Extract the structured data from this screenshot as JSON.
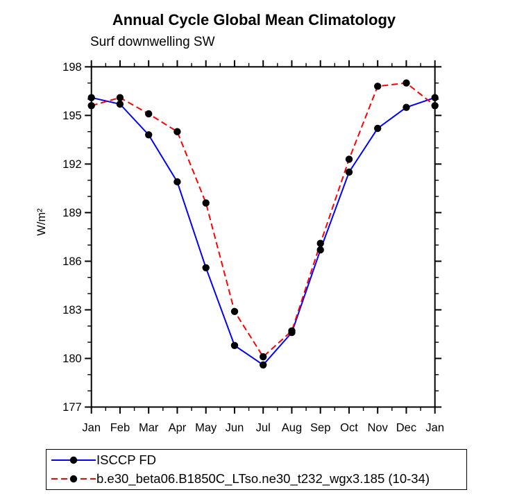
{
  "chart_data": {
    "type": "line",
    "title": "Annual Cycle Global Mean Climatology",
    "subtitle": "Surf downwelling SW",
    "ylabel": "W/m²",
    "xlabel": "",
    "categories": [
      "Jan",
      "Feb",
      "Mar",
      "Apr",
      "May",
      "Jun",
      "Jul",
      "Aug",
      "Sep",
      "Oct",
      "Nov",
      "Dec",
      "Jan"
    ],
    "ylim": [
      177,
      198
    ],
    "yticks_major": [
      177,
      180,
      183,
      186,
      189,
      192,
      195,
      198
    ],
    "ytick_minor_interval": 1,
    "xtick_minor_step": 0.5,
    "grid": false,
    "legend_position": "bottom-left-boxed",
    "marker": "filled-circle",
    "marker_color": "#000000",
    "axis_color": "#000000",
    "series": [
      {
        "name": "ISCCP FD",
        "color": "#0000ff",
        "line_style": "solid",
        "values": [
          196.1,
          195.7,
          193.8,
          190.9,
          185.6,
          180.8,
          179.6,
          181.6,
          186.7,
          191.5,
          194.2,
          195.5,
          196.1
        ]
      },
      {
        "name": "b.e30_beta06.B1850C_LTso.ne30_t232_wgx3.185 (10-34)",
        "color": "#ff0000",
        "line_style": "dashed",
        "values": [
          195.6,
          196.1,
          195.1,
          194.0,
          189.6,
          182.9,
          180.1,
          181.7,
          187.1,
          192.3,
          196.8,
          197.0,
          195.6
        ]
      }
    ]
  }
}
